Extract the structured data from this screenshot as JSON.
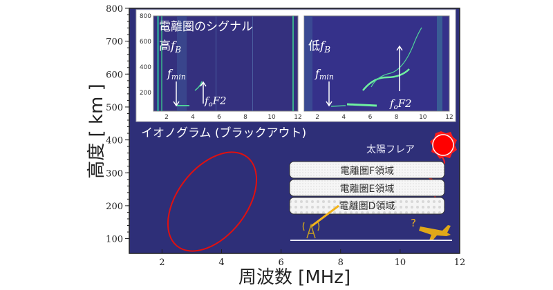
{
  "main_plot": {
    "xlabel": "周波数 [MHz]",
    "ylabel": "高度 [ km ]",
    "x_ticks": [
      "2",
      "4",
      "6",
      "8",
      "10",
      "12"
    ],
    "y_ticks": [
      "100",
      "200",
      "300",
      "400",
      "500",
      "600",
      "700",
      "800"
    ],
    "xlim": [
      0.9,
      12
    ],
    "ylim": [
      55,
      800
    ],
    "title": "イオノグラム (ブラックアウト)",
    "background_color": "#2e2f78"
  },
  "inset": {
    "title": "電離圏のシグナル",
    "x_ticks": [
      "2",
      "4",
      "6",
      "8",
      "10",
      "12"
    ],
    "y_ticks": [
      "200",
      "400",
      "600",
      "800"
    ],
    "left": {
      "label_prefix": "高",
      "fB": "f",
      "fB_sub": "B",
      "fmin": "f",
      "fmin_sub": "min",
      "foF2": "f",
      "foF2_sub": "o",
      "foF2_suffix": "F2"
    },
    "right": {
      "label_prefix": "低",
      "fB": "f",
      "fB_sub": "B",
      "fmin": "f",
      "fmin_sub": "min",
      "foF2": "f",
      "foF2_sub": "o",
      "foF2_suffix": "F2"
    }
  },
  "diagram": {
    "solar_flare": "太陽フレア",
    "layers": [
      "電離圏F領域",
      "電離圏E領域",
      "電離圏D領域"
    ],
    "question_mark": "?",
    "sun_color": "#ff0000",
    "signal_color": "#f2b31c",
    "ellipse_color": "#e01010"
  }
}
